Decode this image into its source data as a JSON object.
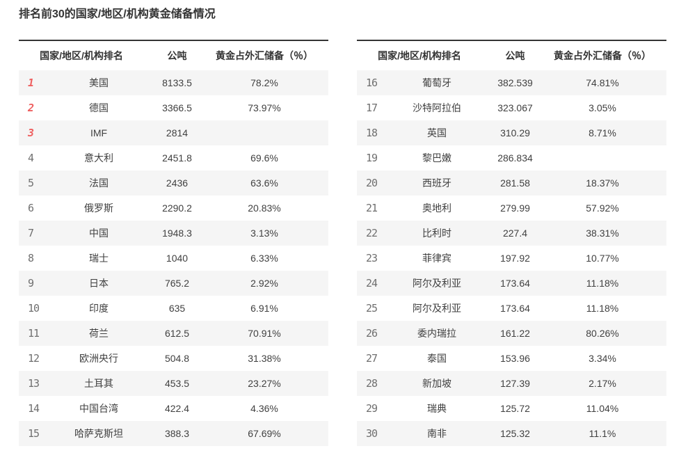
{
  "title": "排名前30的国家/地区/机构黄金储备情况",
  "columns": {
    "rank_name": "国家/地区/机构排名",
    "tonnes": "公吨",
    "percent": "黄金占外汇储备（％）"
  },
  "colors": {
    "accent_red": "#ee5f5f",
    "rank_gray": "#6f6f6f",
    "header_text": "#333333",
    "row_alt_bg": "#f5f5f5",
    "top_border": "#343434"
  },
  "tables": [
    {
      "rows": [
        {
          "rank": "1",
          "name": "美国",
          "tonnes": "8133.5",
          "percent": "78.2%",
          "top3": true
        },
        {
          "rank": "2",
          "name": "德国",
          "tonnes": "3366.5",
          "percent": "73.97%",
          "top3": true
        },
        {
          "rank": "3",
          "name": "IMF",
          "tonnes": "2814",
          "percent": "",
          "top3": true
        },
        {
          "rank": "4",
          "name": "意大利",
          "tonnes": "2451.8",
          "percent": "69.6%"
        },
        {
          "rank": "5",
          "name": "法国",
          "tonnes": "2436",
          "percent": "63.6%"
        },
        {
          "rank": "6",
          "name": "俄罗斯",
          "tonnes": "2290.2",
          "percent": "20.83%"
        },
        {
          "rank": "7",
          "name": "中国",
          "tonnes": "1948.3",
          "percent": "3.13%"
        },
        {
          "rank": "8",
          "name": "瑞士",
          "tonnes": "1040",
          "percent": "6.33%"
        },
        {
          "rank": "9",
          "name": "日本",
          "tonnes": "765.2",
          "percent": "2.92%"
        },
        {
          "rank": "10",
          "name": "印度",
          "tonnes": "635",
          "percent": "6.91%"
        },
        {
          "rank": "11",
          "name": "荷兰",
          "tonnes": "612.5",
          "percent": "70.91%"
        },
        {
          "rank": "12",
          "name": "欧洲央行",
          "tonnes": "504.8",
          "percent": "31.38%"
        },
        {
          "rank": "13",
          "name": "土耳其",
          "tonnes": "453.5",
          "percent": "23.27%"
        },
        {
          "rank": "14",
          "name": "中国台湾",
          "tonnes": "422.4",
          "percent": "4.36%"
        },
        {
          "rank": "15",
          "name": "哈萨克斯坦",
          "tonnes": "388.3",
          "percent": "67.69%"
        }
      ]
    },
    {
      "rows": [
        {
          "rank": "16",
          "name": "葡萄牙",
          "tonnes": "382.539",
          "percent": "74.81%"
        },
        {
          "rank": "17",
          "name": "沙特阿拉伯",
          "tonnes": "323.067",
          "percent": "3.05%"
        },
        {
          "rank": "18",
          "name": "英国",
          "tonnes": "310.29",
          "percent": "8.71%"
        },
        {
          "rank": "19",
          "name": "黎巴嫩",
          "tonnes": "286.834",
          "percent": ""
        },
        {
          "rank": "20",
          "name": "西班牙",
          "tonnes": "281.58",
          "percent": "18.37%"
        },
        {
          "rank": "21",
          "name": "奥地利",
          "tonnes": "279.99",
          "percent": "57.92%"
        },
        {
          "rank": "22",
          "name": "比利时",
          "tonnes": "227.4",
          "percent": "38.31%"
        },
        {
          "rank": "23",
          "name": "菲律宾",
          "tonnes": "197.92",
          "percent": "10.77%"
        },
        {
          "rank": "24",
          "name": "阿尔及利亚",
          "tonnes": "173.64",
          "percent": "11.18%"
        },
        {
          "rank": "25",
          "name": "阿尔及利亚",
          "tonnes": "173.64",
          "percent": "11.18%"
        },
        {
          "rank": "26",
          "name": "委内瑞拉",
          "tonnes": "161.22",
          "percent": "80.26%"
        },
        {
          "rank": "27",
          "name": "泰国",
          "tonnes": "153.96",
          "percent": "3.34%"
        },
        {
          "rank": "28",
          "name": "新加坡",
          "tonnes": "127.39",
          "percent": "2.17%"
        },
        {
          "rank": "29",
          "name": "瑞典",
          "tonnes": "125.72",
          "percent": "11.04%"
        },
        {
          "rank": "30",
          "name": "南非",
          "tonnes": "125.32",
          "percent": "11.1%"
        }
      ]
    }
  ],
  "chart_data": {
    "type": "table",
    "title": "排名前30的国家/地区/机构黄金储备情况",
    "columns": [
      "排名",
      "国家/地区/机构排名",
      "公吨",
      "黄金占外汇储备（％）"
    ],
    "rows": [
      [
        1,
        "美国",
        8133.5,
        78.2
      ],
      [
        2,
        "德国",
        3366.5,
        73.97
      ],
      [
        3,
        "IMF",
        2814,
        null
      ],
      [
        4,
        "意大利",
        2451.8,
        69.6
      ],
      [
        5,
        "法国",
        2436,
        63.6
      ],
      [
        6,
        "俄罗斯",
        2290.2,
        20.83
      ],
      [
        7,
        "中国",
        1948.3,
        3.13
      ],
      [
        8,
        "瑞士",
        1040,
        6.33
      ],
      [
        9,
        "日本",
        765.2,
        2.92
      ],
      [
        10,
        "印度",
        635,
        6.91
      ],
      [
        11,
        "荷兰",
        612.5,
        70.91
      ],
      [
        12,
        "欧洲央行",
        504.8,
        31.38
      ],
      [
        13,
        "土耳其",
        453.5,
        23.27
      ],
      [
        14,
        "中国台湾",
        422.4,
        4.36
      ],
      [
        15,
        "哈萨克斯坦",
        388.3,
        67.69
      ],
      [
        16,
        "葡萄牙",
        382.539,
        74.81
      ],
      [
        17,
        "沙特阿拉伯",
        323.067,
        3.05
      ],
      [
        18,
        "英国",
        310.29,
        8.71
      ],
      [
        19,
        "黎巴嫩",
        286.834,
        null
      ],
      [
        20,
        "西班牙",
        281.58,
        18.37
      ],
      [
        21,
        "奥地利",
        279.99,
        57.92
      ],
      [
        22,
        "比利时",
        227.4,
        38.31
      ],
      [
        23,
        "菲律宾",
        197.92,
        10.77
      ],
      [
        24,
        "阿尔及利亚",
        173.64,
        11.18
      ],
      [
        25,
        "阿尔及利亚",
        173.64,
        11.18
      ],
      [
        26,
        "委内瑞拉",
        161.22,
        80.26
      ],
      [
        27,
        "泰国",
        153.96,
        3.34
      ],
      [
        28,
        "新加坡",
        127.39,
        2.17
      ],
      [
        29,
        "瑞典",
        125.72,
        11.04
      ],
      [
        30,
        "南非",
        125.32,
        11.1
      ]
    ]
  }
}
